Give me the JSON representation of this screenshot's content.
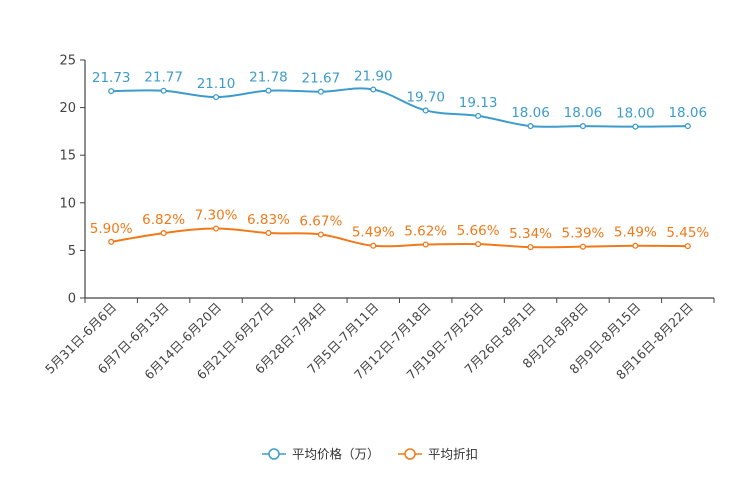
{
  "chart_data": {
    "type": "line",
    "title": "",
    "xlabel": "",
    "ylabel": "",
    "ylim": [
      0,
      25
    ],
    "yticks": [
      0,
      5,
      10,
      15,
      20,
      25
    ],
    "legend_position": "bottom-center",
    "grid": false,
    "categories": [
      "5月31日-6月6日",
      "6月7日-6月13日",
      "6月14日-6月20日",
      "6月21日-6月27日",
      "6月28日-7月4日",
      "7月5日-7月11日",
      "7月12日-7月18日",
      "7月19日-7月25日",
      "7月26日-8月1日",
      "8月2日-8月8日",
      "8月9日-8月15日",
      "8月16日-8月22日"
    ],
    "series": [
      {
        "name": "平均价格（万）",
        "color": "#3d9ccc",
        "values": [
          21.73,
          21.77,
          21.1,
          21.78,
          21.67,
          21.9,
          19.7,
          19.13,
          18.06,
          18.06,
          18.0,
          18.06
        ],
        "labels": [
          "21.73",
          "21.77",
          "21.10",
          "21.78",
          "21.67",
          "21.90",
          "19.70",
          "19.13",
          "18.06",
          "18.06",
          "18.00",
          "18.06"
        ]
      },
      {
        "name": "平均折扣",
        "color": "#f07a1a",
        "values": [
          5.9,
          6.82,
          7.3,
          6.83,
          6.67,
          5.49,
          5.62,
          5.66,
          5.34,
          5.39,
          5.49,
          5.45
        ],
        "labels": [
          "5.90%",
          "6.82%",
          "7.30%",
          "6.83%",
          "6.67%",
          "5.49%",
          "5.62%",
          "5.66%",
          "5.34%",
          "5.39%",
          "5.49%",
          "5.45%"
        ]
      }
    ]
  }
}
